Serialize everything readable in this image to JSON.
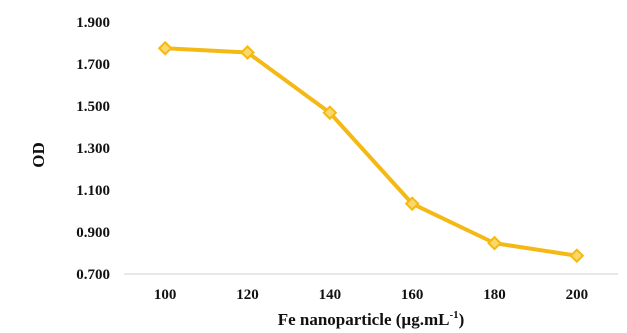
{
  "chart_data": {
    "type": "line",
    "title": "",
    "xlabel_prefix": "Fe nanoparticle (",
    "xlabel_unit_base": "µg.mL",
    "xlabel_unit_sup": "-1",
    "xlabel_suffix": ")",
    "ylabel": "OD",
    "x": [
      100,
      120,
      140,
      160,
      180,
      200
    ],
    "x_tick_labels": [
      "100",
      "120",
      "140",
      "160",
      "180",
      "200"
    ],
    "xlim": [
      90,
      210
    ],
    "ylim": [
      0.7,
      1.9
    ],
    "y_ticks": [
      0.7,
      0.9,
      1.1,
      1.3,
      1.5,
      1.7,
      1.9
    ],
    "y_tick_labels": [
      "0.700",
      "0.900",
      "1.100",
      "1.300",
      "1.500",
      "1.700",
      "1.900"
    ],
    "grid": false,
    "series": [
      {
        "values": [
          1.775,
          1.755,
          1.468,
          1.035,
          0.847,
          0.787
        ],
        "color": "#F5B915",
        "marker": "diamond"
      }
    ]
  }
}
